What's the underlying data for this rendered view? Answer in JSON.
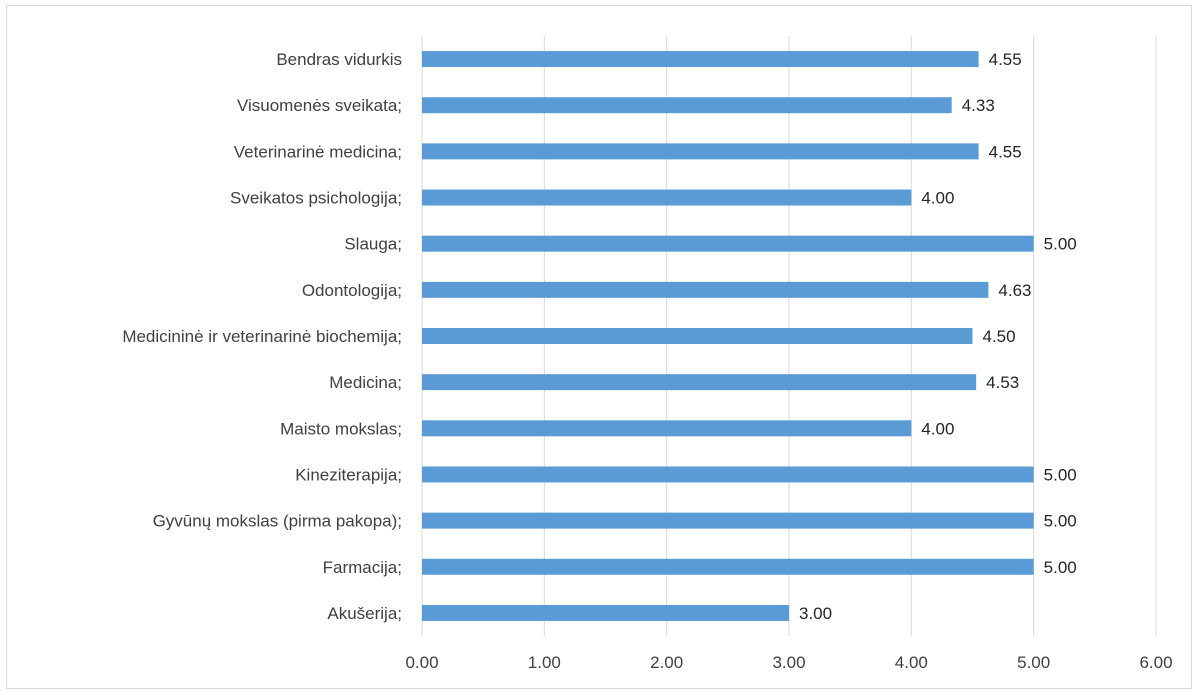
{
  "chart_data": {
    "type": "bar",
    "orientation": "horizontal",
    "categories": [
      "Bendras vidurkis",
      "Visuomenės sveikata;",
      "Veterinarinė medicina;",
      "Sveikatos psichologija;",
      "Slauga;",
      "Odontologija;",
      "Medicininė ir veterinarinė biochemija;",
      "Medicina;",
      "Maisto mokslas;",
      "Kineziterapija;",
      "Gyvūnų mokslas (pirma pakopa);",
      "Farmacija;",
      "Akušerija;"
    ],
    "values": [
      4.55,
      4.33,
      4.55,
      4.0,
      5.0,
      4.63,
      4.5,
      4.53,
      4.0,
      5.0,
      5.0,
      5.0,
      3.0
    ],
    "value_labels": [
      "4.55",
      "4.33",
      "4.55",
      "4.00",
      "5.00",
      "4.63",
      "4.50",
      "4.53",
      "4.00",
      "5.00",
      "5.00",
      "5.00",
      "3.00"
    ],
    "xlim": [
      0,
      6
    ],
    "x_ticks": [
      0,
      1,
      2,
      3,
      4,
      5,
      6
    ],
    "x_tick_labels": [
      "0.00",
      "1.00",
      "2.00",
      "3.00",
      "4.00",
      "5.00",
      "6.00"
    ],
    "title": "",
    "xlabel": "",
    "ylabel": "",
    "grid": true,
    "legend": false,
    "bar_color": "#5b9bd5"
  }
}
